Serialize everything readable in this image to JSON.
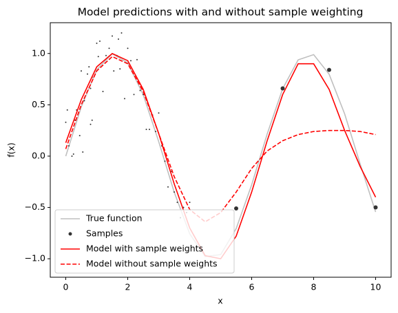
{
  "chart_data": {
    "type": "line",
    "title": "Model predictions with and without sample weighting",
    "x_label": "x",
    "y_label": "f(x)",
    "xlim": [
      -0.5,
      10.5
    ],
    "ylim": [
      -1.18,
      1.3
    ],
    "xticks": [
      0,
      2,
      4,
      6,
      8,
      10
    ],
    "yticks": [
      {
        "value": -1,
        "label": "−1.0"
      },
      {
        "value": -0.5,
        "label": "−0.5"
      },
      {
        "value": 0,
        "label": "0.0"
      },
      {
        "value": 0.5,
        "label": "0.5"
      },
      {
        "value": 1,
        "label": "1.0"
      }
    ],
    "legend": "lower left",
    "x": [
      0,
      0.5,
      1,
      1.5,
      2,
      2.5,
      3,
      3.5,
      4,
      4.5,
      5,
      5.5,
      6,
      6.5,
      7,
      7.5,
      8,
      8.5,
      9,
      9.5,
      10
    ],
    "series": [
      {
        "name": "True function",
        "type": "line",
        "color": "#bfbfbf",
        "style": "solid",
        "values": [
          0,
          0.479,
          0.841,
          0.997,
          0.909,
          0.598,
          0.141,
          -0.351,
          -0.757,
          -0.978,
          -0.959,
          -0.706,
          -0.279,
          0.215,
          0.657,
          0.938,
          0.989,
          0.798,
          0.412,
          -0.075,
          -0.544
        ]
      },
      {
        "name": "Samples",
        "type": "scatter",
        "color": "#333333",
        "x": [
          0,
          0.05,
          0.1,
          0.2,
          0.25,
          0.3,
          0.35,
          0.45,
          0.5,
          0.55,
          0.6,
          0.7,
          0.75,
          0.8,
          0.85,
          0.8,
          0.85,
          1.0,
          1.05,
          1.1,
          1.2,
          1.3,
          1.4,
          1.5,
          1.55,
          1.65,
          1.7,
          1.75,
          1.8,
          1.9,
          2.0,
          2.1,
          2.2,
          2.3,
          2.4,
          2.5,
          2.6,
          2.7,
          2.8,
          2.9,
          3.0,
          3.1,
          3.2,
          3.3,
          3.4,
          3.5,
          3.6,
          3.7,
          3.8,
          3.9,
          4.0,
          5.5,
          7,
          8.5,
          10
        ],
        "values": [
          0.33,
          0.45,
          0.1,
          0.0,
          0.02,
          0.35,
          0.45,
          0.2,
          0.83,
          0.04,
          0.54,
          0.8,
          0.87,
          0.66,
          0.77,
          0.31,
          0.35,
          1.1,
          0.97,
          1.12,
          0.63,
          0.98,
          1.05,
          1.17,
          0.83,
          0.98,
          1.14,
          0.85,
          1.2,
          0.56,
          1.05,
          0.93,
          0.6,
          0.94,
          0.64,
          0.6,
          0.26,
          0.26,
          0.4,
          0.24,
          0.42,
          0.1,
          -0.05,
          -0.3,
          -0.15,
          -0.35,
          -0.45,
          -0.6,
          -0.5,
          -0.55,
          -0.45,
          -0.51,
          0.66,
          0.84,
          -0.5
        ],
        "sizes": [
          1,
          1,
          1,
          1,
          1,
          1,
          1,
          1,
          1,
          1,
          1,
          1,
          1,
          1,
          1,
          1,
          1,
          1,
          1,
          1,
          1,
          1,
          1,
          1,
          1,
          1,
          1,
          1,
          1,
          1,
          1,
          1,
          1,
          1,
          1,
          1,
          1,
          1,
          1,
          1,
          1,
          1,
          1,
          1,
          1,
          1,
          1,
          1,
          1,
          1,
          1,
          3,
          3,
          3,
          3
        ]
      },
      {
        "name": "Model with sample weights",
        "type": "line",
        "color": "#ff0000",
        "style": "solid",
        "values": [
          0.13,
          0.55,
          0.87,
          1.0,
          0.93,
          0.65,
          0.22,
          -0.27,
          -0.7,
          -0.97,
          -1.0,
          -0.78,
          -0.35,
          0.15,
          0.6,
          0.9,
          0.9,
          0.65,
          0.25,
          -0.1,
          -0.4
        ]
      },
      {
        "name": "Model without sample weights",
        "type": "line",
        "color": "#ff0000",
        "style": "dashed",
        "values": [
          0.07,
          0.5,
          0.83,
          0.97,
          0.9,
          0.63,
          0.22,
          -0.2,
          -0.52,
          -0.64,
          -0.55,
          -0.35,
          -0.12,
          0.05,
          0.15,
          0.21,
          0.24,
          0.25,
          0.25,
          0.24,
          0.21
        ]
      }
    ]
  }
}
